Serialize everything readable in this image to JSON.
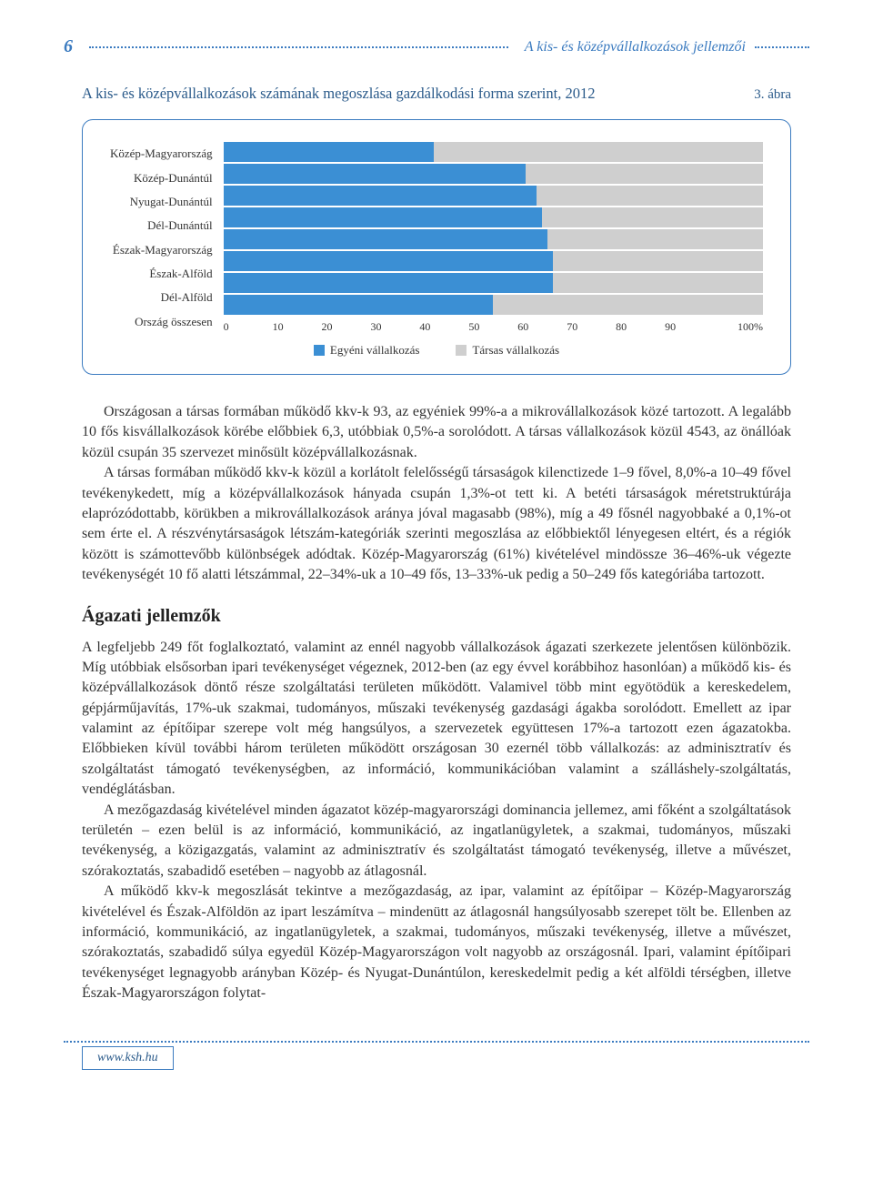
{
  "header": {
    "page_num": "6",
    "title": "A kis- és középvállalkozások jellemzői"
  },
  "chart": {
    "type": "stacked-bar-horizontal",
    "title": "A kis- és középvállalkozások számának megoszlása gazdálkodási forma szerint, 2012",
    "fig_label": "3. ábra",
    "y_labels": [
      "Közép-Magyarország",
      "Közép-Dunántúl",
      "Nyugat-Dunántúl",
      "Dél-Dunántúl",
      "Észak-Magyarország",
      "Észak-Alföld",
      "Dél-Alföld",
      "Ország összesen"
    ],
    "series": [
      {
        "name": "Egyéni vállalkozás",
        "color": "#3b8fd4"
      },
      {
        "name": "Társas vállalkozás",
        "color": "#cfcfcf"
      }
    ],
    "values_series1": [
      39,
      56,
      58,
      59,
      60,
      61,
      61,
      50
    ],
    "x_ticks": [
      "0",
      "10",
      "20",
      "30",
      "40",
      "50",
      "60",
      "70",
      "80",
      "90",
      "100%"
    ],
    "xlim": [
      0,
      100
    ],
    "background_color": "#ffffff",
    "border_color": "#3b7bc0",
    "bar_bg": "#cfcfcf",
    "label_fontsize": 13,
    "tick_fontsize": 12
  },
  "body": {
    "p1": "Országosan a társas formában működő kkv-k 93, az egyéniek 99%-a a mikrovállalkozások közé tartozott. A legalább 10 fős kisvállalkozások körébe előbbiek 6,3, utóbbiak 0,5%-a sorolódott. A társas vállalkozások közül 4543, az önállóak közül csupán 35 szervezet minősült középvállalkozásnak.",
    "p2": "A társas formában működő kkv-k közül a korlátolt felelősségű társaságok kilenctizede 1–9 fővel, 8,0%-a 10–49 fővel tevékenykedett, míg a középvállalkozások hányada csupán 1,3%-ot tett ki. A betéti társaságok méretstruktúrája elaprózódottabb, körükben a mikrovállalkozások aránya jóval magasabb (98%), míg a 49 fősnél nagyobbaké a 0,1%-ot sem érte el. A részvénytársaságok létszám-kategóriák szerinti megoszlása az előbbiektől lényegesen eltért, és a régiók között is számottevőbb különbségek adódtak. Közép-Magyarország (61%) kivételével mindössze 36–46%-uk végezte tevékenységét 10 fő alatti létszámmal, 22–34%-uk a 10–49 fős, 13–33%-uk pedig a 50–249 fős kategóriába tartozott.",
    "section_heading": "Ágazati jellemzők",
    "p3": "A legfeljebb 249 főt foglalkoztató, valamint az ennél nagyobb vállalkozások ágazati szerkezete jelentősen különbözik. Míg utóbbiak elsősorban ipari tevékenységet végeznek, 2012-ben (az egy évvel korábbihoz hasonlóan) a működő kis- és középvállalkozások döntő része szolgáltatási területen működött. Valamivel több mint egyötödük a kereskedelem, gépjárműjavítás, 17%-uk szakmai, tudományos, műszaki tevékenység gazdasági ágakba sorolódott. Emellett az ipar valamint az építőipar szerepe volt még hangsúlyos, a szervezetek együttesen 17%-a tartozott ezen ágazatokba. Előbbieken kívül további három területen működött országosan 30 ezernél több vállalkozás: az adminisztratív és szolgáltatást támogató tevékenységben, az információ, kommunikációban valamint a szálláshely-szolgáltatás, vendéglátásban.",
    "p4": "A mezőgazdaság kivételével minden ágazatot közép-magyarországi dominancia jellemez, ami főként a szolgáltatások területén – ezen belül is az információ, kommunikáció, az ingatlanügyletek, a szakmai, tudományos, műszaki tevékenység, a közigazgatás, valamint az adminisztratív és szolgáltatást támogató tevékenység, illetve a művészet, szórakoztatás, szabadidő esetében – nagyobb az átlagosnál.",
    "p5": "A működő kkv-k megoszlását tekintve a mezőgazdaság, az ipar, valamint az építőipar – Közép-Magyarország kivételével és Észak-Alföldön az ipart leszámítva – mindenütt az átlagosnál hangsúlyosabb szerepet tölt be. Ellenben az információ, kommunikáció, az ingatlanügyletek, a szakmai, tudományos, műszaki tevékenység, illetve a művészet, szórakoztatás, szabadidő súlya egyedül Közép-Magyarországon volt nagyobb az országosnál. Ipari, valamint építőipari tevékenységet legnagyobb arányban Közép- és Nyugat-Dunántúlon, kereskedelmit pedig a két alföldi térségben, illetve Észak-Magyarországon folytat-"
  },
  "footer": {
    "link_text": "www.ksh.hu"
  }
}
